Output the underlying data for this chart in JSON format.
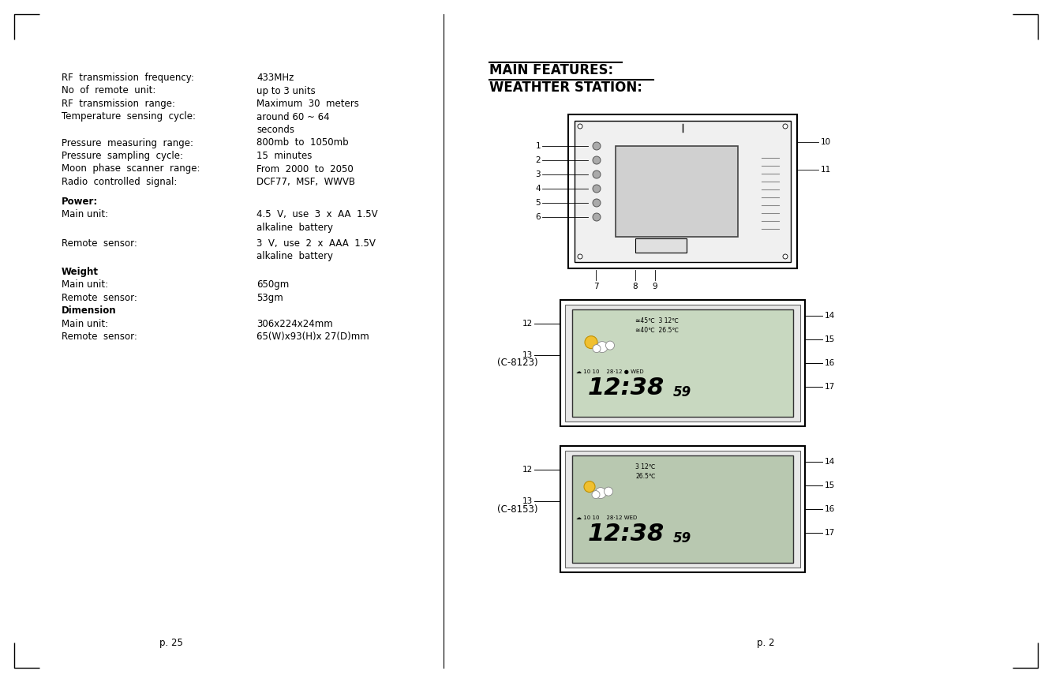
{
  "bg_color": "#ffffff",
  "text_color": "#000000",
  "left_specs": [
    [
      "RF  transmission  frequency:",
      "433MHz"
    ],
    [
      "No  of  remote  unit:",
      "up to 3 units"
    ],
    [
      "RF  transmission  range:",
      "Maximum  30  meters"
    ],
    [
      "Temperature  sensing  cycle:",
      "around 60 ~ 64"
    ],
    [
      "",
      "seconds"
    ],
    [
      "",
      ""
    ],
    [
      "Pressure  measuring  range:",
      "800mb  to  1050mb"
    ],
    [
      "Pressure  sampling  cycle:",
      "15  minutes"
    ],
    [
      "Moon  phase  scanner  range:",
      "From  2000  to  2050"
    ],
    [
      "Radio  controlled  signal:",
      "DCF77,  MSF,  WWVB"
    ],
    [
      "",
      ""
    ],
    [
      "Power:",
      ""
    ],
    [
      "Main unit:",
      "4.5  V,  use  3  x  AA  1.5V"
    ],
    [
      "",
      "alkaline  battery"
    ],
    [
      "",
      ""
    ],
    [
      "Remote  sensor:",
      "3  V,  use  2  x  AAA  1.5V"
    ],
    [
      "",
      "alkaline  battery"
    ],
    [
      "",
      ""
    ],
    [
      "Weight",
      ""
    ],
    [
      "Main unit:",
      "650gm"
    ],
    [
      "Remote  sensor:",
      "53gm"
    ],
    [
      "Dimension",
      ""
    ],
    [
      "Main unit:",
      "306x224x24mm"
    ],
    [
      "Remote  sensor:",
      "65(W)x93(H)x 27(D)mm"
    ]
  ],
  "page_num_left": "p. 25",
  "page_num_right": "p. 2",
  "main_features_title": "MAIN FEATURES:",
  "weather_station_title": "WEATHTER STATION:",
  "device1_label": "(C-8123)",
  "device2_label": "(C-8153)",
  "left_numbers": [
    "1",
    "2",
    "3",
    "4",
    "5",
    "6"
  ],
  "bottom_numbers": [
    "7",
    "8",
    "9"
  ],
  "right_numbers_top": [
    "10",
    "11"
  ],
  "right_numbers_side": [
    "14",
    "15",
    "16",
    "17"
  ]
}
